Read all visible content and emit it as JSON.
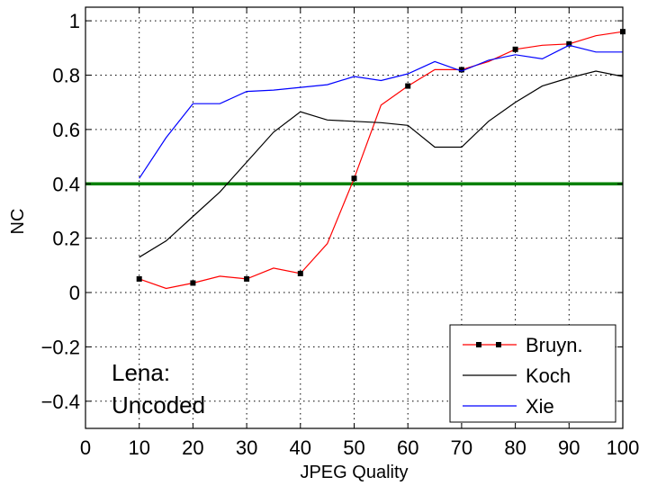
{
  "chart_data": {
    "type": "line",
    "title": "",
    "xlabel": "JPEG Quality",
    "ylabel": "NC",
    "xlim": [
      0,
      100
    ],
    "ylim": [
      -0.5,
      1.05
    ],
    "xticks": [
      0,
      10,
      20,
      30,
      40,
      50,
      60,
      70,
      80,
      90,
      100
    ],
    "yticks": [
      -0.4,
      -0.2,
      0,
      0.2,
      0.4,
      0.6,
      0.8,
      1
    ],
    "ytick_labels": [
      "−0.4",
      "−0.2",
      "0",
      "0.2",
      "0.4",
      "0.6",
      "0.8",
      "1"
    ],
    "grid": true,
    "legend_position": "bottom-right",
    "threshold": {
      "y": 0.4,
      "color": "#008000"
    },
    "annotation": [
      "Lena:",
      "Uncoded"
    ],
    "series": [
      {
        "name": "Bruyn.",
        "color": "#ff0000",
        "marker": "square",
        "x": [
          10,
          15,
          20,
          25,
          30,
          35,
          40,
          45,
          50,
          55,
          60,
          65,
          70,
          75,
          80,
          85,
          90,
          95,
          100
        ],
        "y": [
          0.05,
          0.015,
          0.035,
          0.06,
          0.05,
          0.09,
          0.07,
          0.18,
          0.42,
          0.69,
          0.76,
          0.82,
          0.82,
          0.85,
          0.895,
          0.91,
          0.915,
          0.945,
          0.96
        ],
        "marker_x": [
          10,
          20,
          30,
          40,
          50,
          60,
          70,
          80,
          90,
          100
        ]
      },
      {
        "name": "Koch",
        "color": "#000000",
        "marker": "none",
        "x": [
          10,
          15,
          20,
          25,
          30,
          35,
          40,
          45,
          50,
          55,
          60,
          65,
          70,
          75,
          80,
          85,
          90,
          95,
          100
        ],
        "y": [
          0.13,
          0.19,
          0.28,
          0.37,
          0.48,
          0.59,
          0.665,
          0.635,
          0.63,
          0.625,
          0.615,
          0.535,
          0.535,
          0.63,
          0.7,
          0.76,
          0.79,
          0.815,
          0.795
        ]
      },
      {
        "name": "Xie",
        "color": "#0000ff",
        "marker": "none",
        "x": [
          10,
          15,
          20,
          25,
          30,
          35,
          40,
          45,
          50,
          55,
          60,
          65,
          70,
          75,
          80,
          85,
          90,
          95,
          100
        ],
        "y": [
          0.42,
          0.57,
          0.695,
          0.695,
          0.74,
          0.745,
          0.755,
          0.765,
          0.795,
          0.78,
          0.805,
          0.85,
          0.815,
          0.855,
          0.875,
          0.86,
          0.91,
          0.885,
          0.885
        ]
      }
    ]
  }
}
